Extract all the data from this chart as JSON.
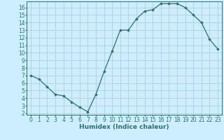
{
  "x": [
    0,
    1,
    2,
    3,
    4,
    5,
    6,
    7,
    8,
    9,
    10,
    11,
    12,
    13,
    14,
    15,
    16,
    17,
    18,
    19,
    20,
    21,
    22,
    23
  ],
  "y": [
    7.0,
    6.5,
    5.5,
    4.5,
    4.3,
    3.5,
    2.8,
    2.2,
    4.5,
    7.5,
    10.2,
    13.0,
    13.0,
    14.5,
    15.5,
    15.7,
    16.5,
    16.5,
    16.5,
    16.0,
    15.0,
    14.0,
    11.8,
    10.5
  ],
  "line_color": "#2d7070",
  "marker": "D",
  "marker_size": 1.8,
  "bg_color": "#cceeff",
  "grid_color": "#aacccc",
  "xlabel": "Humidex (Indice chaleur)",
  "xlim": [
    -0.5,
    23.5
  ],
  "ylim": [
    1.8,
    16.8
  ],
  "yticks": [
    2,
    3,
    4,
    5,
    6,
    7,
    8,
    9,
    10,
    11,
    12,
    13,
    14,
    15,
    16
  ],
  "xticks": [
    0,
    1,
    2,
    3,
    4,
    5,
    6,
    7,
    8,
    9,
    10,
    11,
    12,
    13,
    14,
    15,
    16,
    17,
    18,
    19,
    20,
    21,
    22,
    23
  ],
  "tick_fontsize": 5.5,
  "label_fontsize": 6.5
}
